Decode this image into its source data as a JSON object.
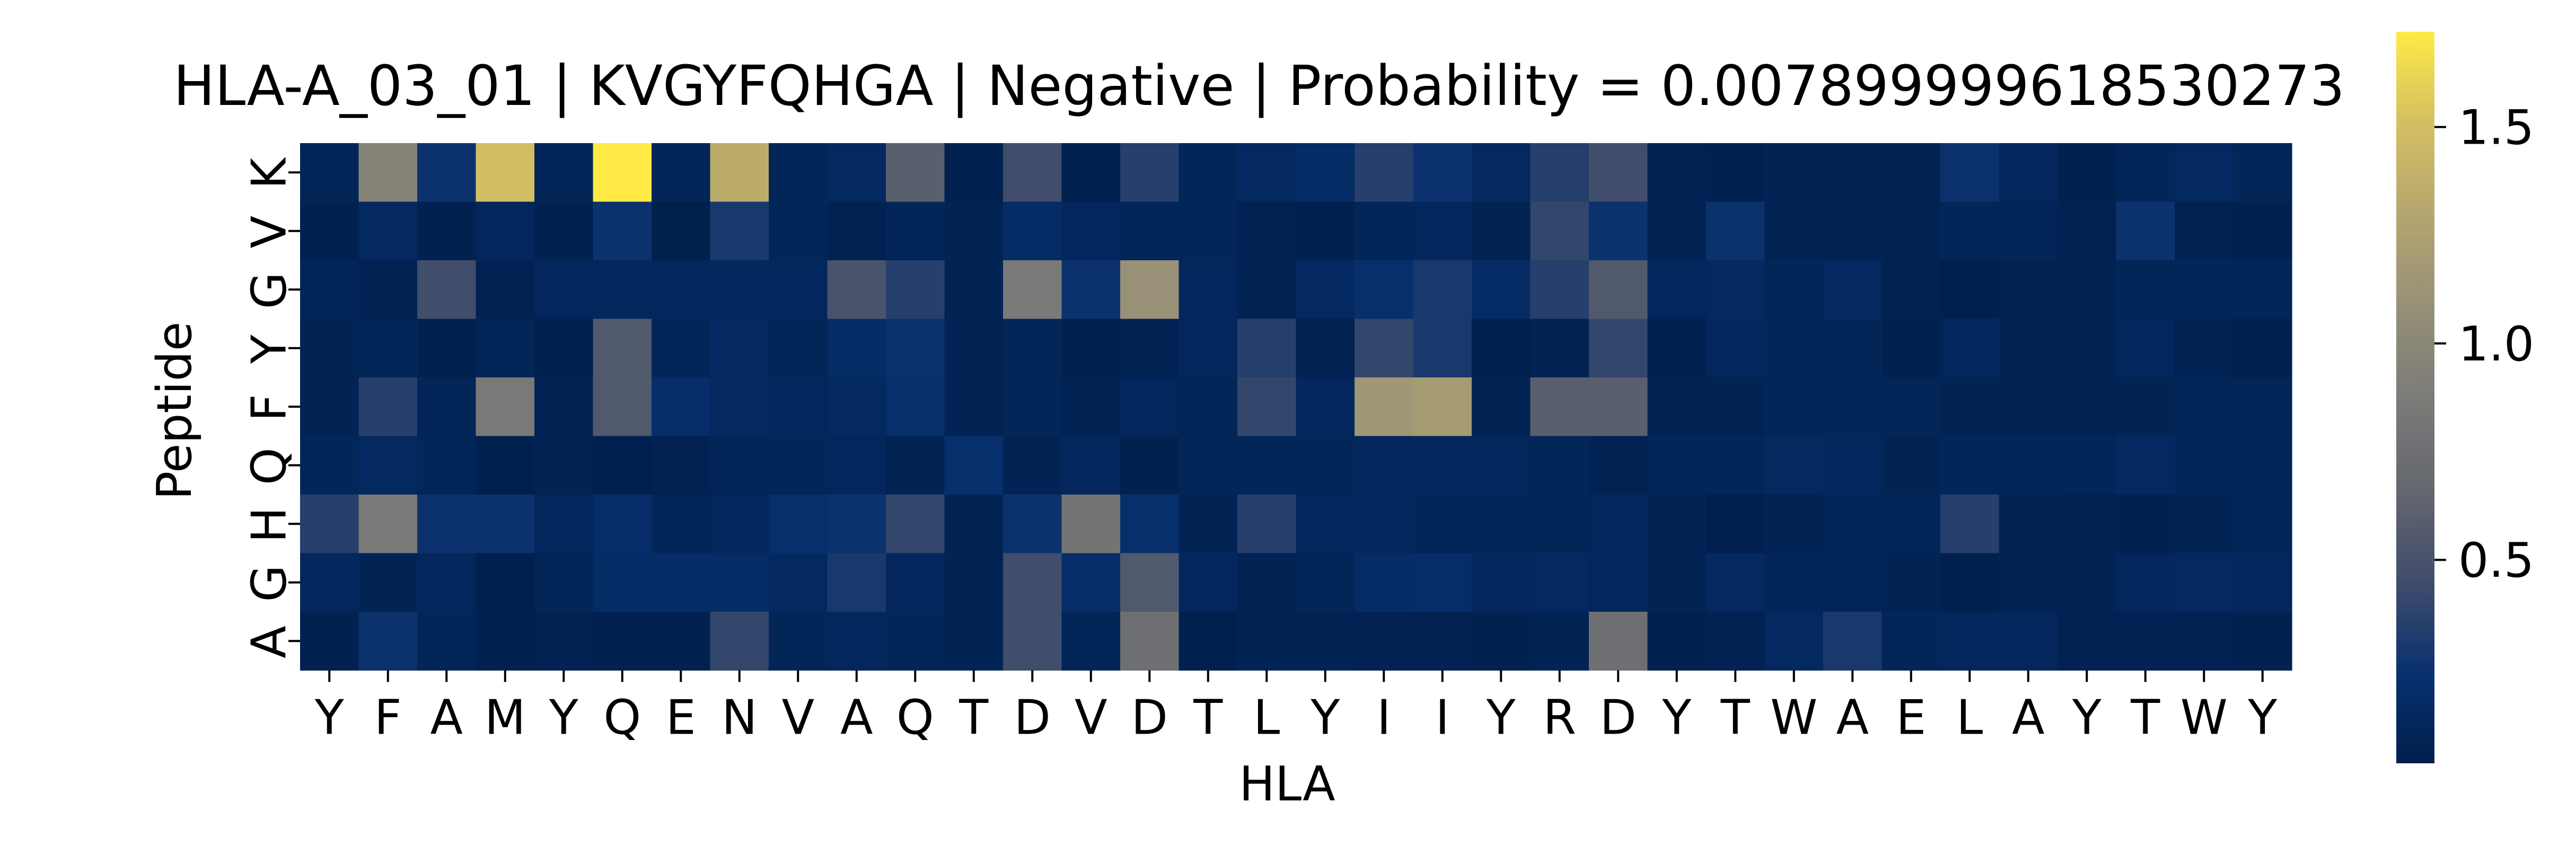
{
  "chart_data": {
    "type": "heatmap",
    "title": "HLA-A_03_01 | KVGYFQHGA | Negative | Probability = 0.007899999618530273",
    "xlabel": "HLA",
    "ylabel": "Peptide",
    "x_ticklabels": [
      "Y",
      "F",
      "A",
      "M",
      "Y",
      "Q",
      "E",
      "N",
      "V",
      "A",
      "Q",
      "T",
      "D",
      "V",
      "D",
      "T",
      "L",
      "Y",
      "I",
      "I",
      "Y",
      "R",
      "D",
      "Y",
      "T",
      "W",
      "A",
      "E",
      "L",
      "A",
      "Y",
      "T",
      "W",
      "Y"
    ],
    "y_ticklabels": [
      "K",
      "V",
      "G",
      "Y",
      "F",
      "Q",
      "H",
      "G",
      "A"
    ],
    "colormap": "cividis",
    "colorbar": {
      "range": [
        0.03,
        1.72
      ],
      "ticks": [
        0.5,
        1.0,
        1.5
      ],
      "tick_labels": [
        "0.5",
        "1.0",
        "1.5"
      ]
    },
    "values": [
      [
        0.1,
        0.95,
        0.25,
        1.5,
        0.1,
        1.72,
        0.1,
        1.35,
        0.1,
        0.15,
        0.6,
        0.05,
        0.45,
        0.05,
        0.35,
        0.1,
        0.15,
        0.18,
        0.35,
        0.25,
        0.15,
        0.35,
        0.45,
        0.08,
        0.05,
        0.08,
        0.08,
        0.08,
        0.25,
        0.12,
        0.05,
        0.1,
        0.15,
        0.1
      ],
      [
        0.05,
        0.15,
        0.05,
        0.12,
        0.05,
        0.25,
        0.03,
        0.3,
        0.1,
        0.06,
        0.1,
        0.08,
        0.18,
        0.12,
        0.1,
        0.1,
        0.06,
        0.05,
        0.1,
        0.12,
        0.08,
        0.4,
        0.25,
        0.08,
        0.25,
        0.07,
        0.07,
        0.06,
        0.1,
        0.1,
        0.06,
        0.25,
        0.06,
        0.05
      ],
      [
        0.1,
        0.06,
        0.45,
        0.06,
        0.12,
        0.12,
        0.12,
        0.12,
        0.12,
        0.5,
        0.35,
        0.08,
        0.85,
        0.25,
        1.1,
        0.12,
        0.08,
        0.15,
        0.22,
        0.3,
        0.18,
        0.35,
        0.55,
        0.12,
        0.15,
        0.1,
        0.15,
        0.07,
        0.04,
        0.08,
        0.08,
        0.1,
        0.1,
        0.1
      ],
      [
        0.08,
        0.1,
        0.05,
        0.1,
        0.05,
        0.55,
        0.1,
        0.15,
        0.1,
        0.18,
        0.25,
        0.08,
        0.1,
        0.04,
        0.07,
        0.12,
        0.35,
        0.06,
        0.4,
        0.3,
        0.04,
        0.06,
        0.4,
        0.05,
        0.12,
        0.1,
        0.1,
        0.05,
        0.12,
        0.07,
        0.07,
        0.12,
        0.07,
        0.05
      ],
      [
        0.08,
        0.35,
        0.1,
        0.85,
        0.08,
        0.55,
        0.2,
        0.15,
        0.12,
        0.15,
        0.22,
        0.08,
        0.1,
        0.08,
        0.12,
        0.1,
        0.4,
        0.12,
        1.15,
        1.2,
        0.08,
        0.6,
        0.6,
        0.08,
        0.08,
        0.1,
        0.1,
        0.1,
        0.08,
        0.08,
        0.07,
        0.08,
        0.1,
        0.1
      ],
      [
        0.1,
        0.15,
        0.1,
        0.04,
        0.08,
        0.04,
        0.06,
        0.1,
        0.1,
        0.12,
        0.08,
        0.22,
        0.08,
        0.12,
        0.05,
        0.1,
        0.1,
        0.1,
        0.12,
        0.12,
        0.12,
        0.1,
        0.07,
        0.1,
        0.1,
        0.14,
        0.12,
        0.08,
        0.1,
        0.1,
        0.1,
        0.15,
        0.1,
        0.1
      ],
      [
        0.35,
        0.85,
        0.25,
        0.25,
        0.12,
        0.2,
        0.1,
        0.12,
        0.22,
        0.25,
        0.4,
        0.08,
        0.25,
        0.8,
        0.22,
        0.08,
        0.35,
        0.12,
        0.12,
        0.1,
        0.1,
        0.1,
        0.12,
        0.08,
        0.04,
        0.08,
        0.1,
        0.1,
        0.35,
        0.08,
        0.06,
        0.05,
        0.08,
        0.1
      ],
      [
        0.12,
        0.08,
        0.12,
        0.04,
        0.1,
        0.18,
        0.18,
        0.18,
        0.15,
        0.3,
        0.12,
        0.08,
        0.45,
        0.2,
        0.55,
        0.12,
        0.06,
        0.1,
        0.18,
        0.2,
        0.12,
        0.15,
        0.12,
        0.08,
        0.15,
        0.1,
        0.1,
        0.08,
        0.04,
        0.08,
        0.08,
        0.12,
        0.15,
        0.12
      ],
      [
        0.05,
        0.25,
        0.1,
        0.05,
        0.06,
        0.05,
        0.05,
        0.4,
        0.1,
        0.12,
        0.1,
        0.08,
        0.45,
        0.1,
        0.75,
        0.04,
        0.08,
        0.08,
        0.06,
        0.06,
        0.05,
        0.08,
        0.75,
        0.05,
        0.06,
        0.15,
        0.3,
        0.1,
        0.12,
        0.12,
        0.06,
        0.06,
        0.06,
        0.05
      ]
    ]
  }
}
